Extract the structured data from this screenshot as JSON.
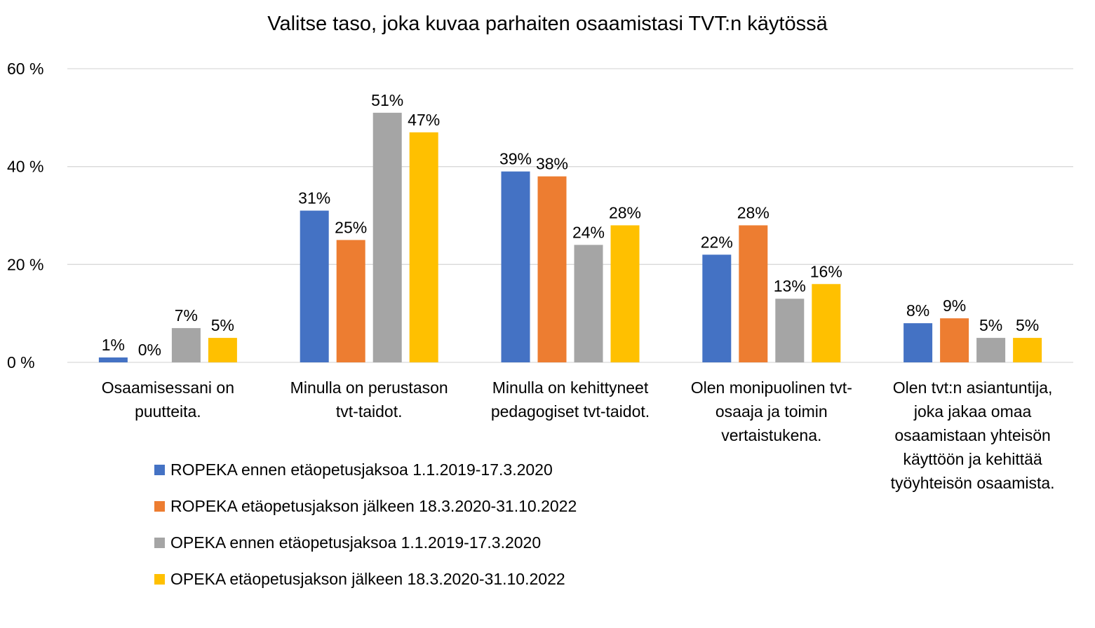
{
  "chart_data": {
    "type": "bar",
    "title": "Valitse taso, joka kuvaa parhaiten osaamistasi TVT:n käytössä",
    "categories": [
      "Osaamisessani on puutteita.",
      "Minulla on perustason tvt-taidot.",
      "Minulla on kehittyneet pedagogiset tvt-taidot.",
      "Olen monipuolinen tvt-osaaja ja toimin vertaistukena.",
      "Olen tvt:n asiantuntija, joka jakaa omaa osaamistaan yhteisön käyttöön ja kehittää työyhteisön osaamista."
    ],
    "category_lines": [
      [
        "Osaamisessani on",
        "puutteita."
      ],
      [
        "Minulla on perustason",
        "tvt-taidot."
      ],
      [
        "Minulla on kehittyneet",
        "pedagogiset tvt-taidot."
      ],
      [
        "Olen monipuolinen tvt-",
        "osaaja ja toimin",
        "vertaistukena."
      ],
      [
        "Olen tvt:n asiantuntija,",
        "joka jakaa omaa",
        "osaamistaan yhteisön",
        "käyttöön ja kehittää",
        "työyhteisön osaamista."
      ]
    ],
    "series": [
      {
        "name": "ROPEKA ennen etäopetusjaksoa 1.1.2019-17.3.2020",
        "color": "#4472C4",
        "values": [
          1,
          31,
          39,
          22,
          8
        ],
        "labels": [
          "1%",
          "31%",
          "39%",
          "22%",
          "8%"
        ]
      },
      {
        "name": "ROPEKA etäopetusjakson jälkeen 18.3.2020-31.10.2022",
        "color": "#ED7D31",
        "values": [
          0,
          25,
          38,
          28,
          9
        ],
        "labels": [
          "0%",
          "25%",
          "38%",
          "28%",
          "9%"
        ]
      },
      {
        "name": "OPEKA ennen etäopetusjaksoa 1.1.2019-17.3.2020",
        "color": "#A5A5A5",
        "values": [
          7,
          51,
          24,
          13,
          5
        ],
        "labels": [
          "7%",
          "51%",
          "24%",
          "13%",
          "5%"
        ]
      },
      {
        "name": "OPEKA etäopetusjakson jälkeen 18.3.2020-31.10.2022",
        "color": "#FFC000",
        "values": [
          5,
          47,
          28,
          16,
          5
        ],
        "labels": [
          "5%",
          "47%",
          "28%",
          "16%",
          "5%"
        ]
      }
    ],
    "yticks": [
      "0 %",
      "20 %",
      "40 %",
      "60 %"
    ],
    "ylim": [
      0,
      60
    ],
    "grid": true,
    "legend_position": "bottom-left"
  }
}
